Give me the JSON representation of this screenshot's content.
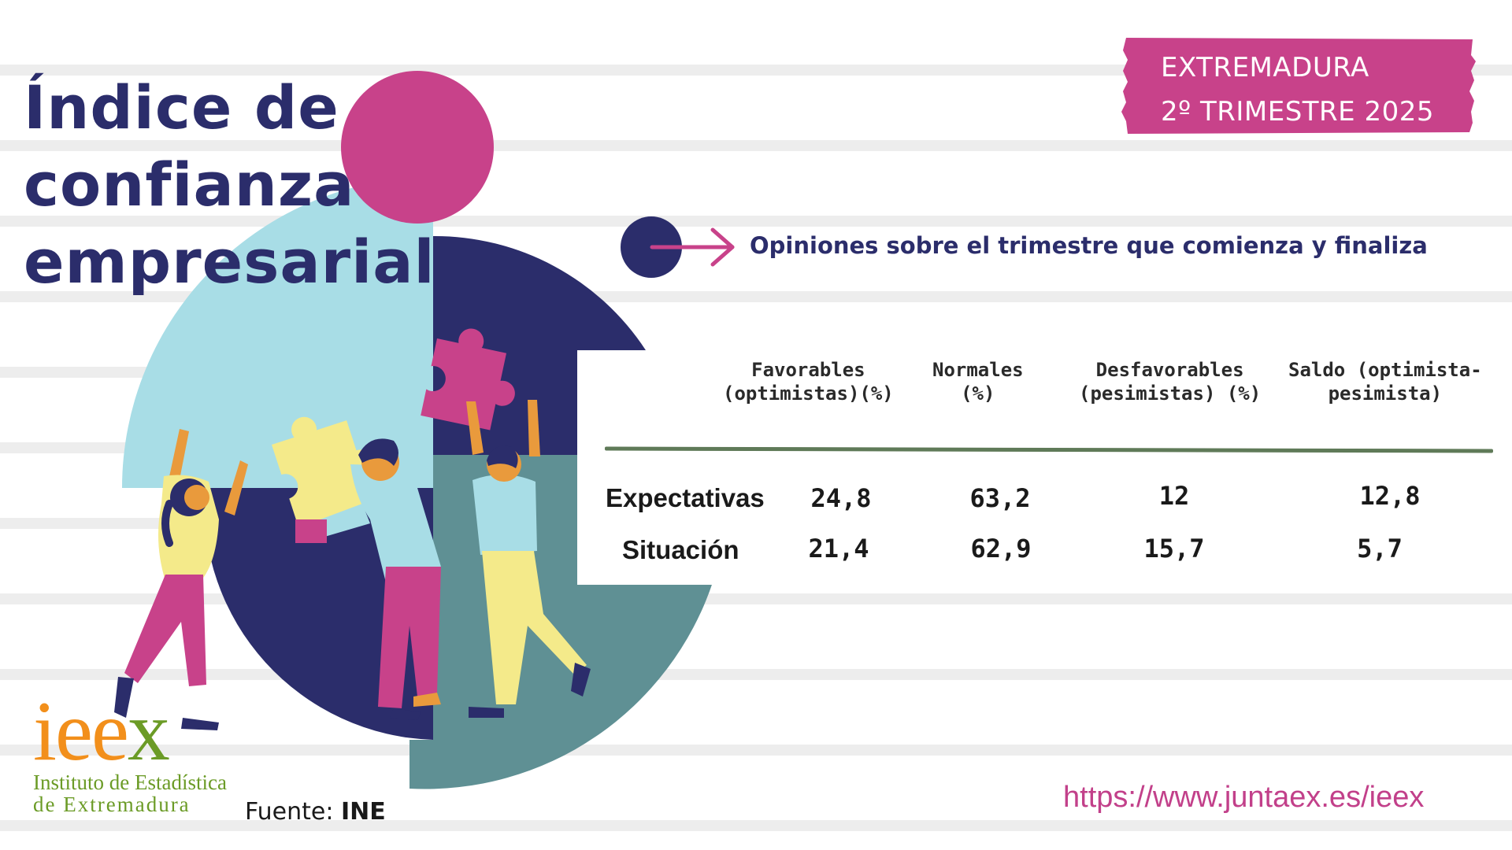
{
  "title": {
    "line1": "Índice de",
    "line2": "confianza",
    "line3": "empresarial"
  },
  "badge": {
    "region": "EXTREMADURA",
    "period": "2º TRIMESTRE 2025"
  },
  "subtitle": "Opiniones sobre el trimestre que comienza y finaliza",
  "table": {
    "headers": [
      {
        "line1": "Favorables",
        "line2": "(optimistas)(%)"
      },
      {
        "line1": "Normales",
        "line2": "(%)"
      },
      {
        "line1": "Desfavorables",
        "line2": "(pesimistas) (%)"
      },
      {
        "line1": "Saldo (optimista-",
        "line2": "pesimista)"
      }
    ],
    "rows": [
      {
        "label": "Expectativas",
        "values": [
          "24,8",
          "63,2",
          "12",
          "12,8"
        ]
      },
      {
        "label": "Situación",
        "values": [
          "21,4",
          "62,9",
          "15,7",
          "5,7"
        ]
      }
    ]
  },
  "logo": {
    "mark_i": "i",
    "mark_ee": "ee",
    "mark_x": "x",
    "line1": "Instituto de Estadística",
    "line2": "de Extremadura"
  },
  "source": {
    "label": "Fuente:",
    "value": "INE"
  },
  "url": "https://www.juntaex.es/ieex",
  "colors": {
    "navy": "#2b2d6b",
    "magenta": "#c8428a",
    "light_blue": "#a8dde6",
    "teal": "#5f9094",
    "yellow": "#f4ea8a",
    "orange": "#f28f1b",
    "green": "#6b9b26"
  },
  "icons": {
    "arrow": "arrow-right-icon",
    "puzzle": "puzzle-piece-icon"
  }
}
